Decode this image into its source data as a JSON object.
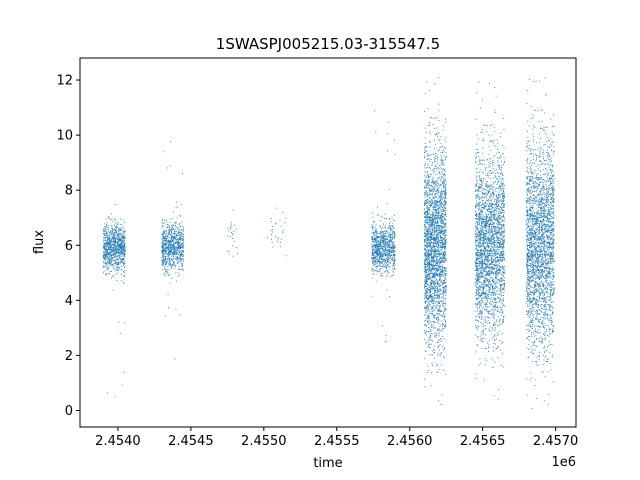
{
  "chart_data": {
    "type": "scatter",
    "title": "1SWASPJ005215.03-315547.5",
    "xlabel": "time",
    "ylabel": "flux",
    "x_offset_label": "1e6",
    "xlim": [
      2453740,
      2457140
    ],
    "ylim": [
      -0.6,
      12.8
    ],
    "x_ticks": [
      2454000,
      2454500,
      2455000,
      2455500,
      2456000,
      2456500,
      2457000
    ],
    "x_tick_labels": [
      "2.4540",
      "2.4545",
      "2.4550",
      "2.4555",
      "2.4560",
      "2.4565",
      "2.4570"
    ],
    "y_ticks": [
      0,
      2,
      4,
      6,
      8,
      10,
      12
    ],
    "y_tick_labels": [
      "0",
      "2",
      "4",
      "6",
      "8",
      "10",
      "12"
    ],
    "grid": false,
    "marker_color": "#1f77b4",
    "seasons": [
      {
        "x_start": 2453900,
        "x_end": 2454050,
        "center": 5.9,
        "spread": 0.45,
        "min": 0.0,
        "max": 10.4,
        "points": 900
      },
      {
        "x_start": 2454300,
        "x_end": 2454450,
        "center": 5.9,
        "spread": 0.45,
        "min": 1.5,
        "max": 10.0,
        "points": 800
      },
      {
        "x_start": 2454750,
        "x_end": 2454820,
        "center": 6.2,
        "spread": 0.5,
        "min": 5.0,
        "max": 7.3,
        "points": 25
      },
      {
        "x_start": 2455020,
        "x_end": 2455160,
        "center": 6.5,
        "spread": 0.5,
        "min": 5.2,
        "max": 7.6,
        "points": 30
      },
      {
        "x_start": 2455740,
        "x_end": 2455900,
        "center": 5.9,
        "spread": 0.45,
        "min": 1.4,
        "max": 11.1,
        "points": 900
      },
      {
        "x_start": 2456100,
        "x_end": 2456250,
        "center": 6.0,
        "spread": 1.7,
        "min": 0.0,
        "max": 12.2,
        "points": 2600
      },
      {
        "x_start": 2456450,
        "x_end": 2456650,
        "center": 6.0,
        "spread": 1.6,
        "min": 0.2,
        "max": 12.2,
        "points": 2600
      },
      {
        "x_start": 2456800,
        "x_end": 2456990,
        "center": 6.0,
        "spread": 1.8,
        "min": 0.0,
        "max": 12.3,
        "points": 2600
      }
    ]
  }
}
